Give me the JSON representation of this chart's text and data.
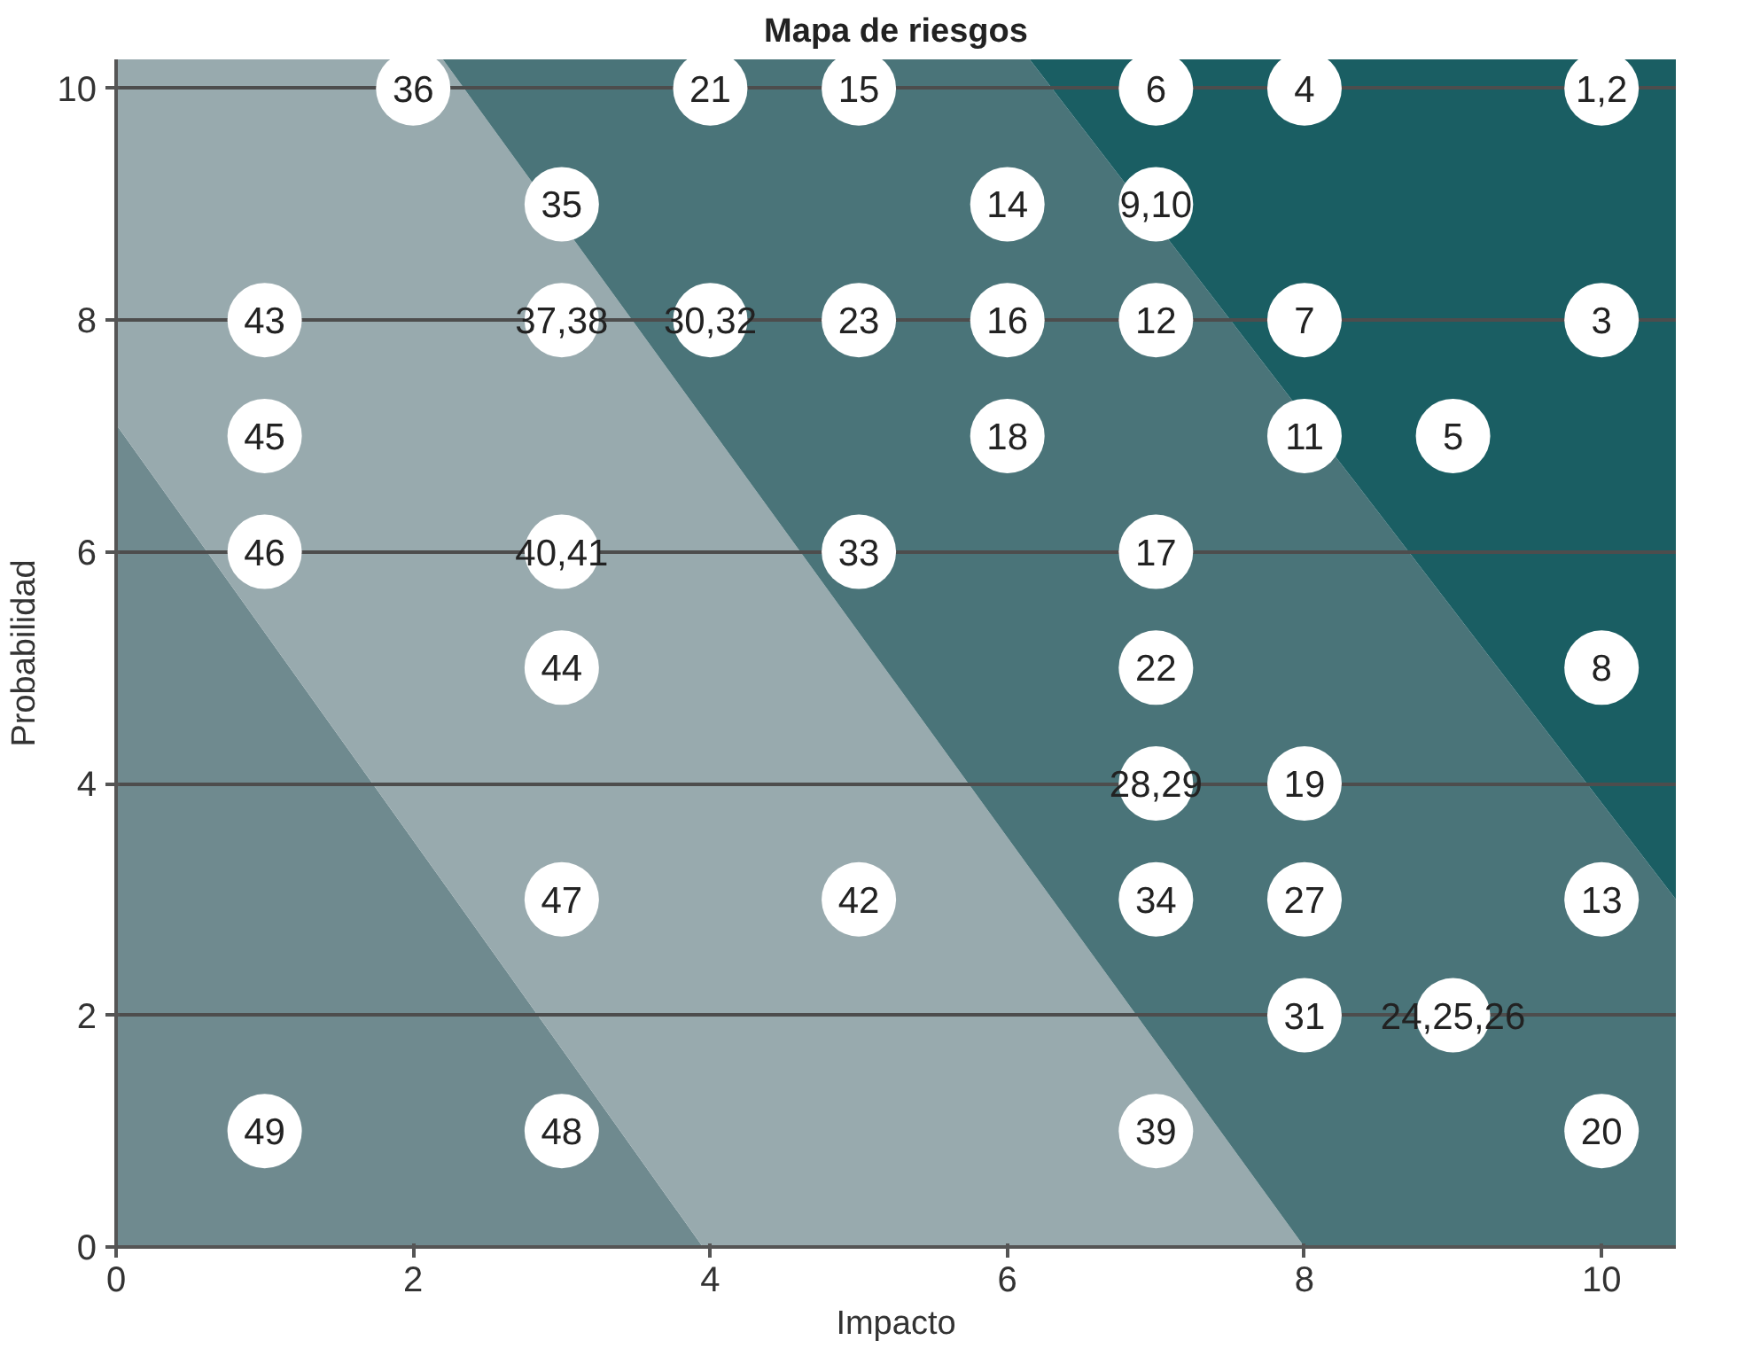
{
  "chart_data": {
    "type": "scatter",
    "title": "Mapa de riesgos",
    "xlabel": "Impacto",
    "ylabel": "Probabilidad",
    "xlim": [
      0,
      10.5
    ],
    "ylim": [
      0,
      10.25
    ],
    "xticks": [
      0,
      2,
      4,
      6,
      8,
      10
    ],
    "yticks": [
      0,
      2,
      4,
      6,
      8,
      10
    ],
    "grid": "y",
    "stacked": true,
    "x": [
      0,
      2.2,
      3.95,
      6.15,
      8,
      10.5
    ],
    "series": [
      {
        "type": "area",
        "color": "#6f8a8f",
        "values": [
          7.1,
          3.15,
          0,
          null,
          null,
          null
        ]
      },
      {
        "type": "area",
        "color": "#98aaae",
        "values": [
          3.15,
          7.1,
          7.16,
          3.27,
          0,
          null
        ]
      },
      {
        "type": "area",
        "color": "#4a7479",
        "values": [
          null,
          0,
          3.09,
          6.98,
          7.17,
          3.0
        ]
      },
      {
        "type": "area",
        "color": "#1a5e63",
        "values": [
          null,
          null,
          null,
          0,
          3.08,
          7.25
        ]
      },
      {
        "color": "#ffffff",
        "marker": "circle",
        "x": [
          2,
          4,
          5,
          7,
          8,
          10,
          3,
          6,
          7,
          1,
          3,
          4,
          5,
          6,
          7,
          8,
          10,
          1,
          6,
          8,
          9,
          1,
          3,
          5,
          7,
          3,
          7,
          10,
          7,
          8,
          3,
          5,
          7,
          8,
          10,
          8,
          9,
          1,
          3,
          7,
          10
        ],
        "values": [
          10,
          10,
          10,
          10,
          10,
          10,
          9,
          9,
          9,
          8,
          8,
          8,
          8,
          8,
          8,
          8,
          8,
          7,
          7,
          7,
          7,
          6,
          6,
          6,
          6,
          5,
          5,
          5,
          4,
          4,
          3,
          3,
          3,
          3,
          3,
          2,
          2,
          1,
          1,
          1,
          1
        ]
      }
    ],
    "annotations": [
      {
        "text": "36",
        "x": 2,
        "y": 10
      },
      {
        "text": "21",
        "x": 4,
        "y": 10
      },
      {
        "text": "15",
        "x": 5,
        "y": 10
      },
      {
        "text": "6",
        "x": 7,
        "y": 10
      },
      {
        "text": "4",
        "x": 8,
        "y": 10
      },
      {
        "text": "1,2",
        "x": 10,
        "y": 10
      },
      {
        "text": "35",
        "x": 3,
        "y": 9
      },
      {
        "text": "14",
        "x": 6,
        "y": 9
      },
      {
        "text": "9,10",
        "x": 7,
        "y": 9
      },
      {
        "text": "43",
        "x": 1,
        "y": 8
      },
      {
        "text": "37,38",
        "x": 3,
        "y": 8
      },
      {
        "text": "30,32",
        "x": 4,
        "y": 8
      },
      {
        "text": "23",
        "x": 5,
        "y": 8
      },
      {
        "text": "16",
        "x": 6,
        "y": 8
      },
      {
        "text": "12",
        "x": 7,
        "y": 8
      },
      {
        "text": "7",
        "x": 8,
        "y": 8
      },
      {
        "text": "3",
        "x": 10,
        "y": 8
      },
      {
        "text": "45",
        "x": 1,
        "y": 7
      },
      {
        "text": "18",
        "x": 6,
        "y": 7
      },
      {
        "text": "11",
        "x": 8,
        "y": 7
      },
      {
        "text": "5",
        "x": 9,
        "y": 7
      },
      {
        "text": "46",
        "x": 1,
        "y": 6
      },
      {
        "text": "40,41",
        "x": 3,
        "y": 6
      },
      {
        "text": "33",
        "x": 5,
        "y": 6
      },
      {
        "text": "17",
        "x": 7,
        "y": 6
      },
      {
        "text": "44",
        "x": 3,
        "y": 5
      },
      {
        "text": "22",
        "x": 7,
        "y": 5
      },
      {
        "text": "8",
        "x": 10,
        "y": 5
      },
      {
        "text": "28,29",
        "x": 7,
        "y": 4
      },
      {
        "text": "19",
        "x": 8,
        "y": 4
      },
      {
        "text": "47",
        "x": 3,
        "y": 3
      },
      {
        "text": "42",
        "x": 5,
        "y": 3
      },
      {
        "text": "34",
        "x": 7,
        "y": 3
      },
      {
        "text": "27",
        "x": 8,
        "y": 3
      },
      {
        "text": "13",
        "x": 10,
        "y": 3
      },
      {
        "text": "31",
        "x": 8,
        "y": 2
      },
      {
        "text": "24,25,26",
        "x": 9,
        "y": 2
      },
      {
        "text": "49",
        "x": 1,
        "y": 1
      },
      {
        "text": "48",
        "x": 3,
        "y": 1
      },
      {
        "text": "39",
        "x": 7,
        "y": 1
      },
      {
        "text": "20",
        "x": 10,
        "y": 1
      }
    ]
  }
}
